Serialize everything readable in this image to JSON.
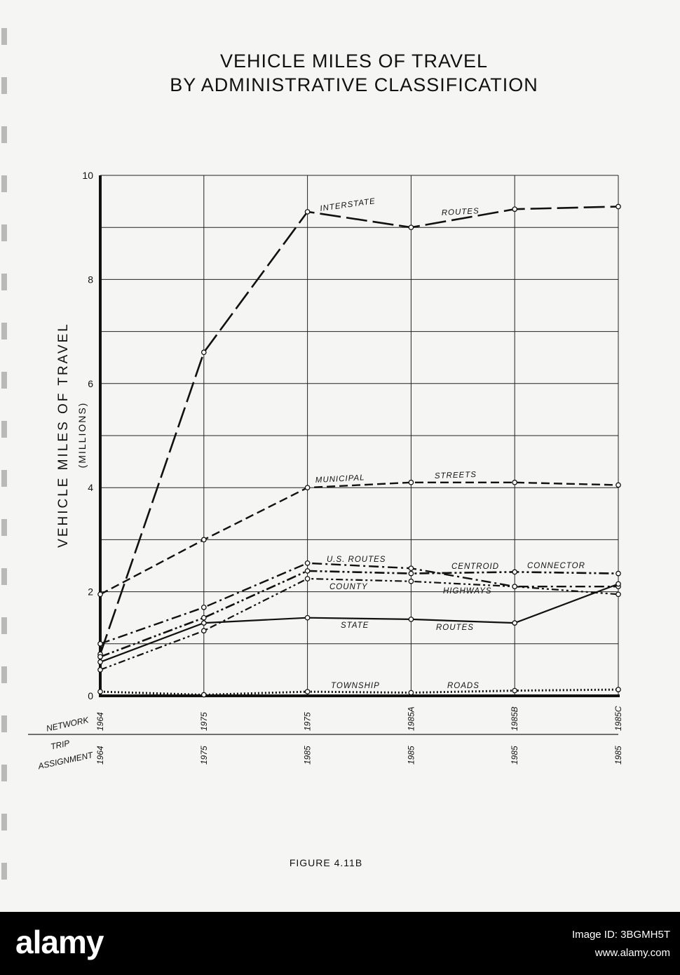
{
  "page": {
    "title_line1": "VEHICLE  MILES OF TRAVEL",
    "title_line2": "BY ADMINISTRATIVE CLASSIFICATION",
    "figure_caption": "FIGURE 4.11B"
  },
  "footer": {
    "logo_text": "alamy",
    "image_id": "Image ID: 3BGMH5T",
    "site": "www.alamy.com"
  },
  "chart_data": {
    "type": "line",
    "title": "VEHICLE  MILES OF TRAVEL BY ADMINISTRATIVE CLASSIFICATION",
    "ylabel": "VEHICLE MILES OF TRAVEL",
    "ylabel_units": "(MILLIONS)",
    "ylim": [
      0,
      10
    ],
    "y_ticks": [
      "0",
      "2",
      "4",
      "6",
      "8",
      "10"
    ],
    "grid": true,
    "row_label_network": "NETWORK",
    "row_label_trip_line1": "TRIP",
    "row_label_trip_line2": "ASSIGNMENT",
    "x_network": [
      "1964",
      "1975",
      "1975",
      "1985A",
      "1985B",
      "1985C"
    ],
    "x_trip_assignment": [
      "1964",
      "1975",
      "1985",
      "1985",
      "1985",
      "1985"
    ],
    "series": [
      {
        "name": "INTERSTATE ROUTES",
        "label_parts": [
          "INTERSTATE",
          "ROUTES"
        ],
        "style": "long-dash",
        "values": [
          0.8,
          6.6,
          9.3,
          9.0,
          9.35,
          9.4
        ]
      },
      {
        "name": "MUNICIPAL STREETS",
        "label_parts": [
          "MUNICIPAL",
          "STREETS"
        ],
        "style": "dash",
        "values": [
          1.95,
          3.0,
          4.0,
          4.1,
          4.1,
          4.05
        ]
      },
      {
        "name": "U.S. ROUTES",
        "label_parts": [
          "U.S. ROUTES"
        ],
        "style": "dash-dot",
        "values": [
          1.0,
          1.7,
          2.55,
          2.45,
          2.1,
          2.1
        ]
      },
      {
        "name": "CENTROID CONNECTOR",
        "label_parts": [
          "CENTROID",
          "CONNECTOR"
        ],
        "style": "dash-dot-dot",
        "values": [
          0.75,
          1.5,
          2.4,
          2.35,
          2.38,
          2.35
        ]
      },
      {
        "name": "COUNTY HIGHWAYS",
        "label_parts": [
          "COUNTY",
          "HIGHWAYS"
        ],
        "style": "dash-double-dot",
        "values": [
          0.5,
          1.25,
          2.25,
          2.2,
          2.1,
          1.95
        ]
      },
      {
        "name": "STATE ROUTES",
        "label_parts": [
          "STATE",
          "ROUTES"
        ],
        "style": "solid",
        "values": [
          0.65,
          1.4,
          1.5,
          1.47,
          1.4,
          2.15
        ]
      },
      {
        "name": "TOWNSHIP ROADS",
        "label_parts": [
          "TOWNSHIP",
          "ROADS"
        ],
        "style": "dotted",
        "values": [
          0.08,
          0.02,
          0.08,
          0.06,
          0.1,
          0.12
        ]
      }
    ]
  }
}
